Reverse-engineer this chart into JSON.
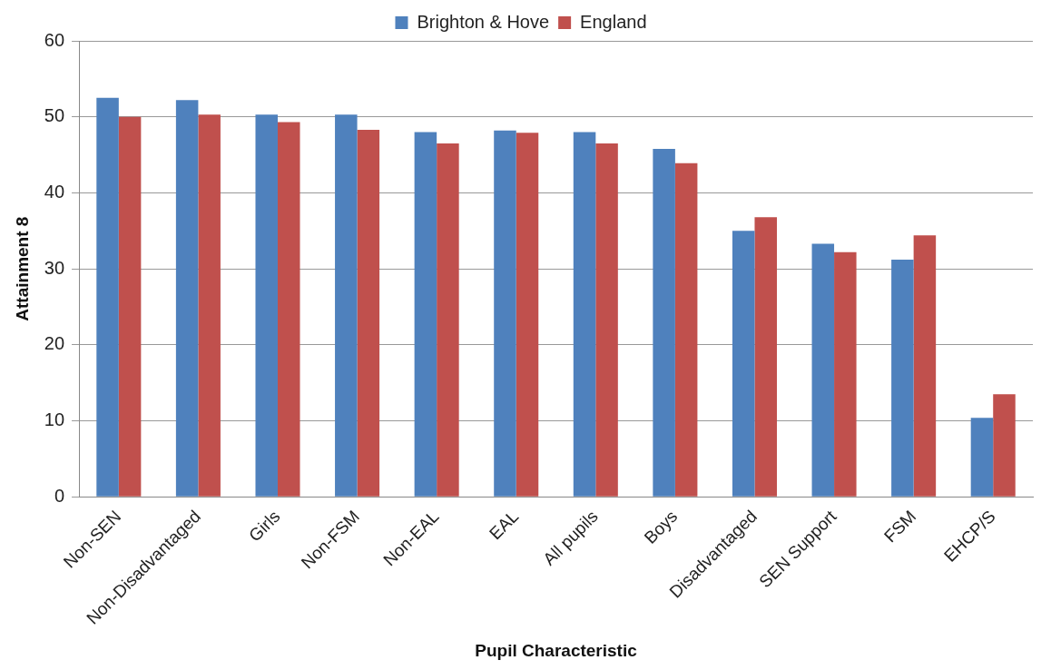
{
  "chart_data": {
    "type": "bar",
    "xlabel": "Pupil Characteristic",
    "ylabel": "Attainment 8",
    "categories": [
      "Non-SEN",
      "Non-Disadvantaged",
      "Girls",
      "Non-FSM",
      "Non-EAL",
      "EAL",
      "All pupils",
      "Boys",
      "Disadvantaged",
      "SEN Support",
      "FSM",
      "EHCP/S"
    ],
    "series": [
      {
        "name": "Brighton & Hove",
        "color": "#4f81bd",
        "values": [
          52.5,
          52.2,
          50.3,
          50.3,
          48.0,
          48.2,
          48.0,
          45.8,
          35.0,
          33.3,
          31.2,
          10.4
        ]
      },
      {
        "name": "England",
        "color": "#c0504d",
        "values": [
          50.0,
          50.3,
          49.3,
          48.3,
          46.5,
          47.9,
          46.5,
          43.9,
          36.8,
          32.2,
          34.4,
          13.5
        ]
      }
    ],
    "ylim": [
      0,
      60
    ],
    "yticks": [
      0,
      10,
      20,
      30,
      40,
      50,
      60
    ],
    "grid": "y",
    "legend": "top"
  }
}
